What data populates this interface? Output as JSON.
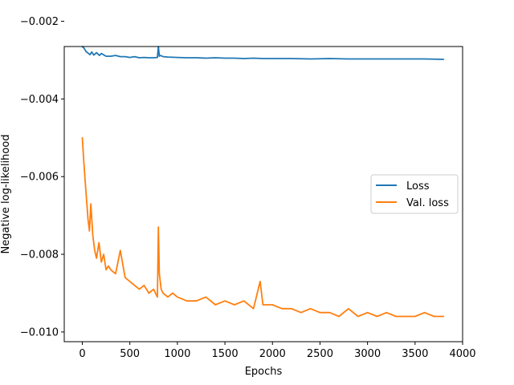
{
  "chart_data": {
    "type": "line",
    "title": "",
    "xlabel": "Epochs",
    "ylabel": "Negative log-likelihood",
    "xlim": [
      -190,
      4000
    ],
    "ylim": [
      -0.01025,
      -0.00265
    ],
    "xticks": [
      0,
      500,
      1000,
      1500,
      2000,
      2500,
      3000,
      3500,
      4000
    ],
    "xtick_labels": [
      "0",
      "500",
      "1000",
      "1500",
      "2000",
      "2500",
      "3000",
      "3500",
      "4000"
    ],
    "yticks": [
      -0.01,
      -0.008,
      -0.006,
      -0.004,
      -0.002
    ],
    "ytick_labels": [
      "−0.010",
      "−0.008",
      "−0.006",
      "−0.004",
      "−0.002"
    ],
    "grid": false,
    "legend_position": "center-right",
    "series": [
      {
        "name": "Loss",
        "color": "#1f77b4",
        "x": [
          0,
          20,
          40,
          60,
          80,
          100,
          120,
          150,
          180,
          200,
          250,
          300,
          350,
          400,
          450,
          500,
          550,
          600,
          650,
          700,
          750,
          790,
          800,
          810,
          820,
          850,
          900,
          1000,
          1100,
          1200,
          1300,
          1400,
          1500,
          1600,
          1700,
          1800,
          1900,
          2000,
          2200,
          2400,
          2600,
          2800,
          3000,
          3200,
          3400,
          3600,
          3800
        ],
        "y": [
          -0.00265,
          -0.0027,
          -0.00278,
          -0.00282,
          -0.00286,
          -0.00279,
          -0.00287,
          -0.00281,
          -0.00288,
          -0.00283,
          -0.0029,
          -0.0029,
          -0.00288,
          -0.00291,
          -0.00291,
          -0.00293,
          -0.00291,
          -0.00294,
          -0.00293,
          -0.00294,
          -0.00294,
          -0.00293,
          -0.00265,
          -0.0029,
          -0.00288,
          -0.00291,
          -0.00292,
          -0.00293,
          -0.00294,
          -0.00294,
          -0.00295,
          -0.00294,
          -0.00295,
          -0.00295,
          -0.00296,
          -0.00295,
          -0.00296,
          -0.00296,
          -0.00296,
          -0.00297,
          -0.00296,
          -0.00297,
          -0.00297,
          -0.00297,
          -0.00297,
          -0.00297,
          -0.00298
        ]
      },
      {
        "name": "Val. loss",
        "color": "#ff7f0e",
        "x": [
          0,
          15,
          30,
          45,
          60,
          75,
          90,
          110,
          130,
          150,
          175,
          200,
          225,
          250,
          275,
          300,
          350,
          400,
          450,
          500,
          550,
          600,
          650,
          700,
          750,
          790,
          800,
          810,
          830,
          850,
          900,
          950,
          1000,
          1100,
          1200,
          1300,
          1400,
          1500,
          1600,
          1700,
          1800,
          1870,
          1900,
          2000,
          2100,
          2200,
          2300,
          2400,
          2500,
          2600,
          2700,
          2800,
          2900,
          3000,
          3100,
          3200,
          3300,
          3400,
          3500,
          3600,
          3700,
          3800
        ],
        "y": [
          -0.005,
          -0.0056,
          -0.0061,
          -0.0066,
          -0.0071,
          -0.0074,
          -0.0067,
          -0.0075,
          -0.0079,
          -0.0081,
          -0.0077,
          -0.0082,
          -0.008,
          -0.0084,
          -0.0083,
          -0.0084,
          -0.0085,
          -0.0079,
          -0.0086,
          -0.0087,
          -0.0088,
          -0.0089,
          -0.0088,
          -0.009,
          -0.0089,
          -0.0091,
          -0.0073,
          -0.0085,
          -0.0089,
          -0.009,
          -0.0091,
          -0.009,
          -0.0091,
          -0.0092,
          -0.0092,
          -0.0091,
          -0.0093,
          -0.0092,
          -0.0093,
          -0.0092,
          -0.0094,
          -0.0087,
          -0.0093,
          -0.0093,
          -0.0094,
          -0.0094,
          -0.0095,
          -0.0094,
          -0.0095,
          -0.0095,
          -0.0096,
          -0.0094,
          -0.0096,
          -0.0095,
          -0.0096,
          -0.0095,
          -0.0096,
          -0.0096,
          -0.0096,
          -0.0095,
          -0.0096,
          -0.0096
        ]
      }
    ]
  }
}
